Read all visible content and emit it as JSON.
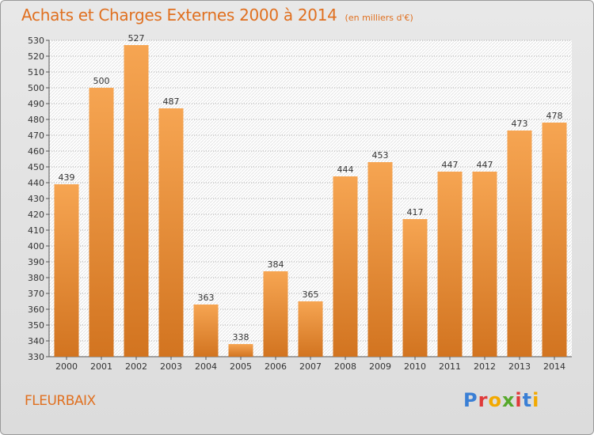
{
  "title": "Achats et Charges Externes 2000 à 2014",
  "subtitle": "(en milliers d'€)",
  "location": "FLEURBAIX",
  "logo": "Proxiti",
  "colors": {
    "bar_top": "#f6a552",
    "bar_bottom": "#d27420",
    "title": "#e07020",
    "grid": "#b0b0b0"
  },
  "chart_data": {
    "type": "bar",
    "categories": [
      "2000",
      "2001",
      "2002",
      "2003",
      "2004",
      "2005",
      "2006",
      "2007",
      "2008",
      "2009",
      "2010",
      "2011",
      "2012",
      "2013",
      "2014"
    ],
    "values": [
      439,
      500,
      527,
      487,
      363,
      338,
      384,
      365,
      444,
      453,
      417,
      447,
      447,
      473,
      478
    ],
    "title": "Achats et Charges Externes 2000 à 2014",
    "xlabel": "",
    "ylabel": "",
    "ylim": [
      330,
      530
    ],
    "ytick_step": 10,
    "grid": true,
    "data_labels": true
  }
}
